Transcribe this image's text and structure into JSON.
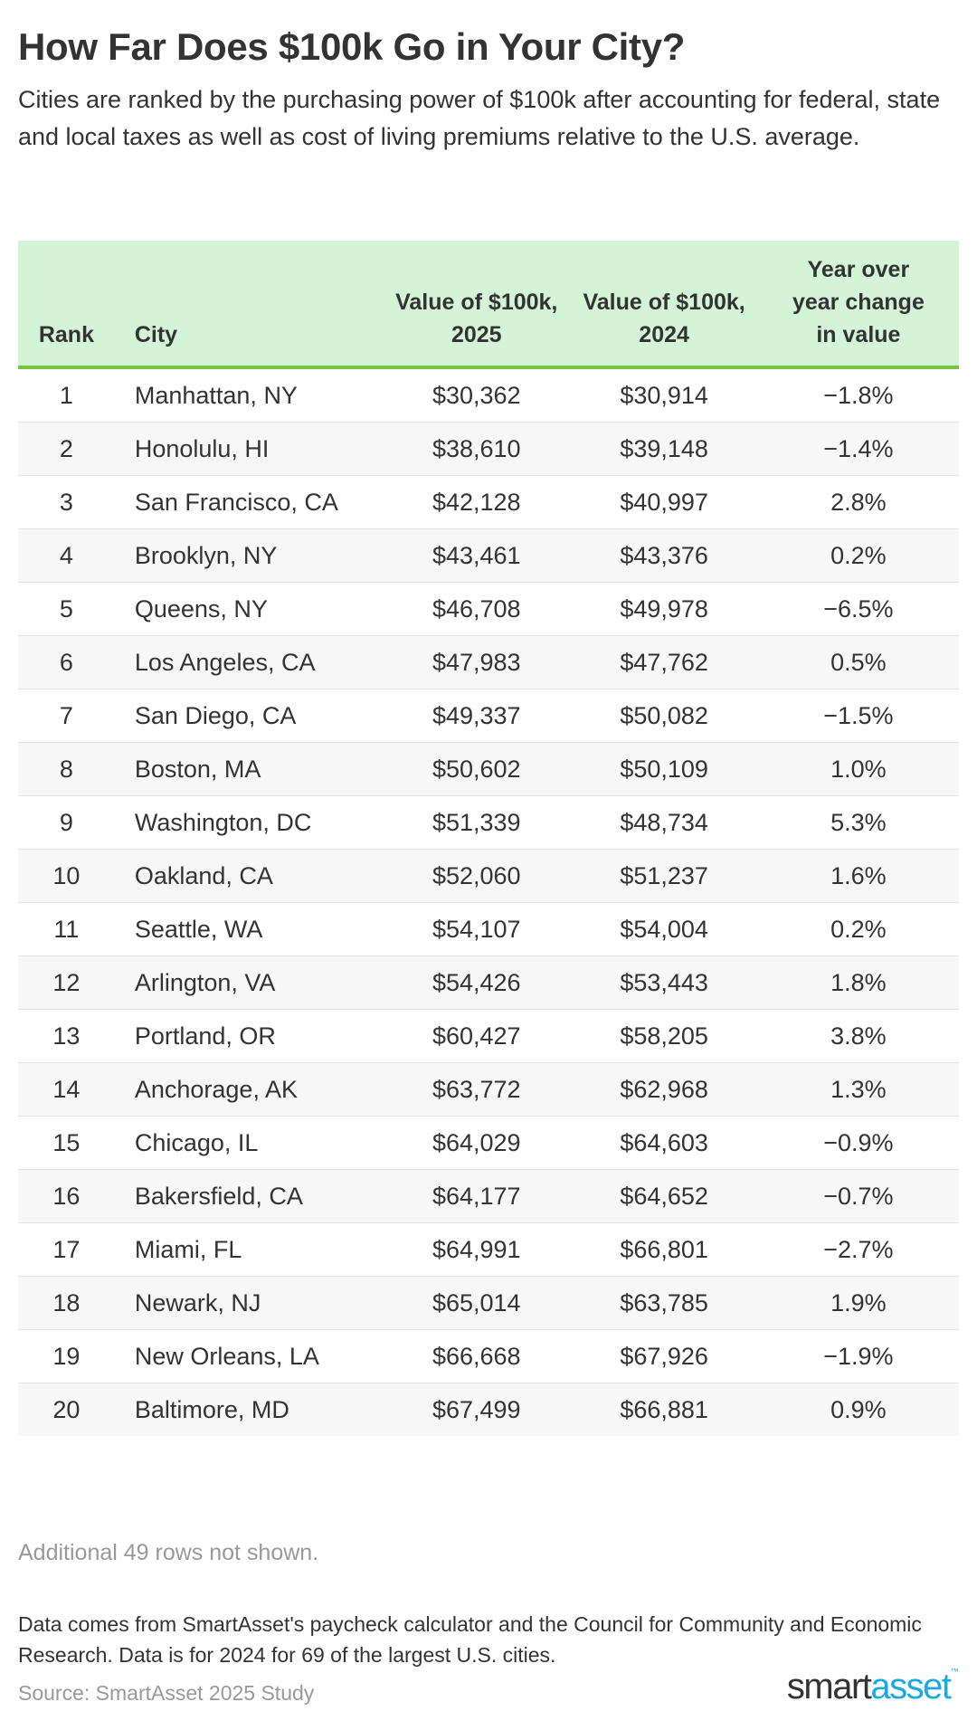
{
  "title": "How Far Does $100k Go in Your City?",
  "subtitle": "Cities are ranked by the purchasing power of $100k after accounting for federal, state and local taxes as well as cost of living premiums relative to the U.S. average.",
  "table": {
    "headers": [
      "Rank",
      "City",
      "Value of $100k, 2025",
      "Value of $100k, 2024",
      "Year over year change in value"
    ],
    "rows": [
      [
        "1",
        "Manhattan, NY",
        "$30,362",
        "$30,914",
        "−1.8%"
      ],
      [
        "2",
        "Honolulu, HI",
        "$38,610",
        "$39,148",
        "−1.4%"
      ],
      [
        "3",
        "San Francisco, CA",
        "$42,128",
        "$40,997",
        "2.8%"
      ],
      [
        "4",
        "Brooklyn, NY",
        "$43,461",
        "$43,376",
        "0.2%"
      ],
      [
        "5",
        "Queens, NY",
        "$46,708",
        "$49,978",
        "−6.5%"
      ],
      [
        "6",
        "Los Angeles, CA",
        "$47,983",
        "$47,762",
        "0.5%"
      ],
      [
        "7",
        "San Diego, CA",
        "$49,337",
        "$50,082",
        "−1.5%"
      ],
      [
        "8",
        "Boston, MA",
        "$50,602",
        "$50,109",
        "1.0%"
      ],
      [
        "9",
        "Washington, DC",
        "$51,339",
        "$48,734",
        "5.3%"
      ],
      [
        "10",
        "Oakland, CA",
        "$52,060",
        "$51,237",
        "1.6%"
      ],
      [
        "11",
        "Seattle, WA",
        "$54,107",
        "$54,004",
        "0.2%"
      ],
      [
        "12",
        "Arlington, VA",
        "$54,426",
        "$53,443",
        "1.8%"
      ],
      [
        "13",
        "Portland, OR",
        "$60,427",
        "$58,205",
        "3.8%"
      ],
      [
        "14",
        "Anchorage, AK",
        "$63,772",
        "$62,968",
        "1.3%"
      ],
      [
        "15",
        "Chicago, IL",
        "$64,029",
        "$64,603",
        "−0.9%"
      ],
      [
        "16",
        "Bakersfield, CA",
        "$64,177",
        "$64,652",
        "−0.7%"
      ],
      [
        "17",
        "Miami, FL",
        "$64,991",
        "$66,801",
        "−2.7%"
      ],
      [
        "18",
        "Newark, NJ",
        "$65,014",
        "$63,785",
        "1.9%"
      ],
      [
        "19",
        "New Orleans, LA",
        "$66,668",
        "$67,926",
        "−1.9%"
      ],
      [
        "20",
        "Baltimore, MD",
        "$67,499",
        "$66,881",
        "0.9%"
      ]
    ]
  },
  "note": "Additional 49 rows not shown.",
  "footer": "Data comes from SmartAsset's paycheck calculator and the Council for Community and Economic Research. Data is for 2024 for 69 of the largest U.S. cities.",
  "source": "Source: SmartAsset 2025 Study",
  "logo": {
    "part1": "smart",
    "part2": "asset",
    "tm": "™"
  },
  "colors": {
    "header_bg": "#d4f4d7",
    "header_rule": "#76c442",
    "brand_blue": "#1aa8e6"
  }
}
